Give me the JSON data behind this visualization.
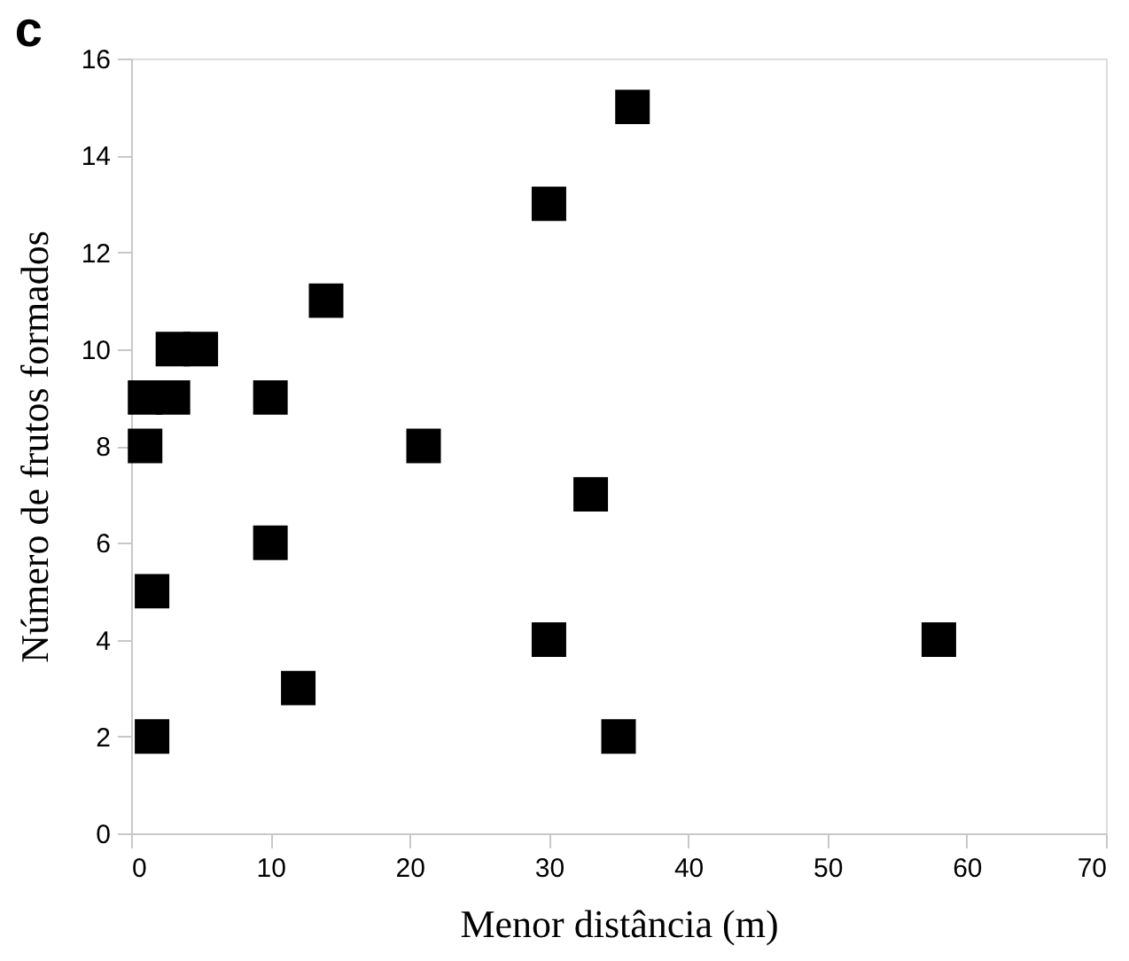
{
  "chart_data": {
    "type": "scatter",
    "title": "c",
    "xlabel": "Menor distância  (m)",
    "ylabel": "Número de frutos formados",
    "x": [
      36,
      30,
      14,
      3,
      5,
      1,
      3,
      10,
      1,
      21,
      33,
      10,
      1.5,
      30,
      58,
      12,
      1.5,
      35
    ],
    "series": [
      {
        "color": "#000000",
        "values": [
          15,
          13,
          11,
          10,
          10,
          9,
          9,
          9,
          8,
          8,
          7,
          6,
          5,
          4,
          4,
          3,
          2,
          2
        ]
      }
    ],
    "xlim": [
      0,
      70
    ],
    "xticks": [
      0,
      10,
      20,
      30,
      40,
      50,
      60,
      70
    ],
    "ylim": [
      0,
      16
    ],
    "yticks": [
      0,
      2,
      4,
      6,
      8,
      10,
      12,
      14,
      16
    ],
    "grid": false,
    "marker": "square"
  }
}
